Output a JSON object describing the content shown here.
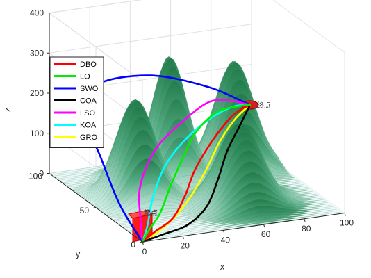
{
  "chart_data": {
    "type": "line",
    "dimensions": 3,
    "title": "",
    "xlabel": "x",
    "ylabel": "y",
    "zlabel": "z",
    "xlim": [
      0,
      100
    ],
    "ylim": [
      0,
      100
    ],
    "zlim": [
      0,
      400
    ],
    "x_ticks": [
      "0",
      "20",
      "40",
      "60",
      "80",
      "100"
    ],
    "y_ticks": [
      "0",
      "50",
      "100"
    ],
    "z_ticks": [
      "0",
      "100",
      "200",
      "300",
      "400"
    ],
    "grid": true,
    "legend_position": "top-left",
    "start_label": "起点",
    "end_label": "终点",
    "start_point": [
      0,
      0,
      0
    ],
    "end_point": [
      90,
      80,
      140
    ],
    "terrain_peaks": [
      {
        "x": 22,
        "y": 55,
        "height": 245
      },
      {
        "x": 48,
        "y": 75,
        "height": 300
      },
      {
        "x": 30,
        "y": 78,
        "height": 170
      },
      {
        "x": 80,
        "y": 75,
        "height": 265
      },
      {
        "x": 62,
        "y": 30,
        "height": 200
      }
    ],
    "series": [
      {
        "name": "DBO",
        "color": "#ff0000",
        "points": [
          [
            0,
            0,
            0
          ],
          [
            10,
            8,
            5
          ],
          [
            22,
            15,
            18
          ],
          [
            35,
            30,
            40
          ],
          [
            45,
            42,
            72
          ],
          [
            58,
            55,
            102
          ],
          [
            72,
            68,
            125
          ],
          [
            82,
            76,
            136
          ],
          [
            90,
            80,
            140
          ]
        ]
      },
      {
        "name": "LO",
        "color": "#00ee00",
        "points": [
          [
            0,
            0,
            0
          ],
          [
            8,
            10,
            8
          ],
          [
            18,
            20,
            25
          ],
          [
            30,
            35,
            58
          ],
          [
            42,
            48,
            95
          ],
          [
            55,
            62,
            128
          ],
          [
            70,
            72,
            150
          ],
          [
            84,
            78,
            145
          ],
          [
            90,
            80,
            140
          ]
        ]
      },
      {
        "name": "SWO",
        "color": "#0000ff",
        "points": [
          [
            0,
            0,
            0
          ],
          [
            -2,
            20,
            60
          ],
          [
            0,
            45,
            135
          ],
          [
            4,
            70,
            190
          ],
          [
            20,
            92,
            220
          ],
          [
            50,
            100,
            208
          ],
          [
            75,
            92,
            175
          ],
          [
            90,
            80,
            140
          ]
        ]
      },
      {
        "name": "COA",
        "color": "#000000",
        "points": [
          [
            0,
            0,
            0
          ],
          [
            12,
            4,
            3
          ],
          [
            26,
            8,
            10
          ],
          [
            40,
            18,
            28
          ],
          [
            52,
            32,
            62
          ],
          [
            64,
            48,
            98
          ],
          [
            78,
            64,
            128
          ],
          [
            90,
            80,
            140
          ]
        ]
      },
      {
        "name": "LSO",
        "color": "#ff00ff",
        "points": [
          [
            0,
            0,
            0
          ],
          [
            6,
            15,
            22
          ],
          [
            15,
            35,
            68
          ],
          [
            32,
            55,
            115
          ],
          [
            52,
            68,
            150
          ],
          [
            68,
            76,
            170
          ],
          [
            80,
            80,
            158
          ],
          [
            90,
            80,
            140
          ]
        ]
      },
      {
        "name": "KOA",
        "color": "#00ffff",
        "points": [
          [
            0,
            0,
            0
          ],
          [
            8,
            12,
            14
          ],
          [
            18,
            28,
            48
          ],
          [
            32,
            45,
            90
          ],
          [
            48,
            58,
            122
          ],
          [
            65,
            68,
            145
          ],
          [
            80,
            76,
            150
          ],
          [
            90,
            80,
            140
          ]
        ]
      },
      {
        "name": "GRO",
        "color": "#ffff00",
        "points": [
          [
            0,
            0,
            0
          ],
          [
            10,
            6,
            6
          ],
          [
            22,
            14,
            20
          ],
          [
            36,
            26,
            44
          ],
          [
            50,
            40,
            76
          ],
          [
            64,
            56,
            108
          ],
          [
            78,
            70,
            130
          ],
          [
            90,
            80,
            140
          ]
        ]
      }
    ]
  }
}
